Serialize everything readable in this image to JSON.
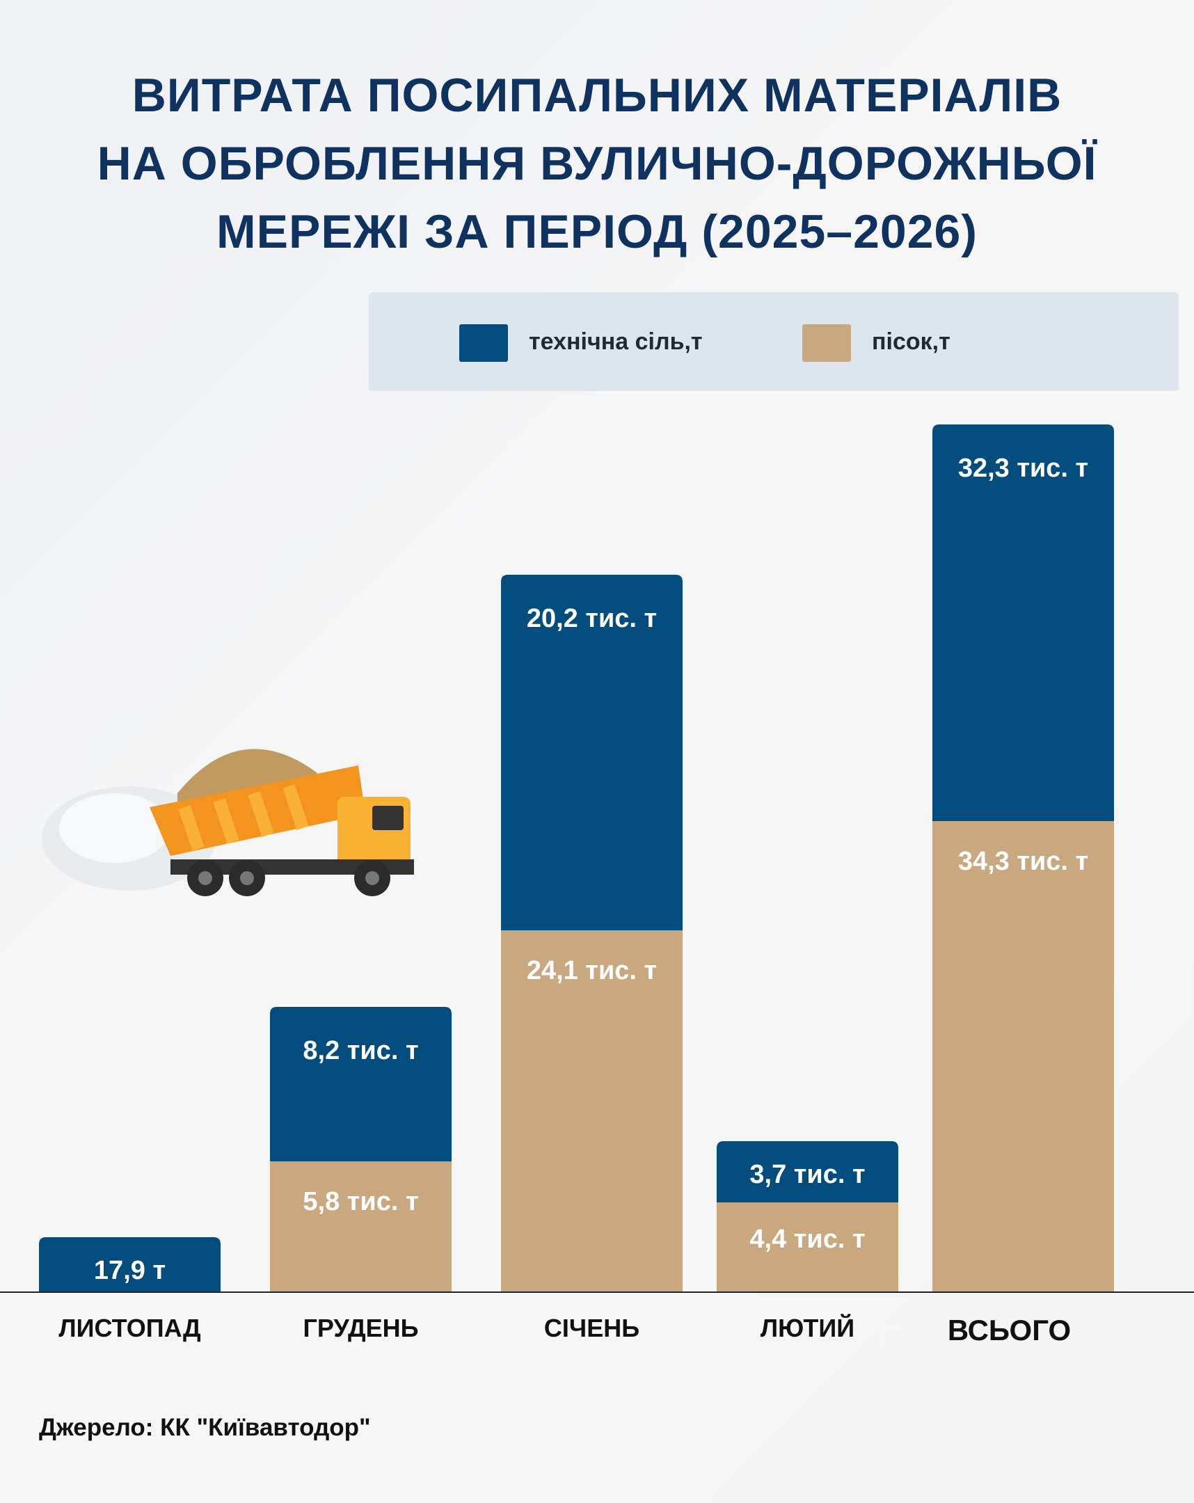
{
  "title_lines": [
    "ВИТРАТА ПОСИПАЛЬНИХ МАТЕРІАЛІВ",
    "НА ОБРОБЛЕННЯ ВУЛИЧНО-ДОРОЖНЬОЇ",
    "МЕРЕЖІ ЗА ПЕРІОД (2025–2026)"
  ],
  "source": "Джерело: КК \"Київавтодор\"",
  "colors": {
    "salt": "#034c7e",
    "sand": "#c9a880",
    "title": "#0f3360"
  },
  "chart_data": {
    "type": "bar",
    "stacked": true,
    "title": "ВИТРАТА ПОСИПАЛЬНИХ МАТЕРІАЛІВ НА ОБРОБЛЕННЯ ВУЛИЧНО-ДОРОЖНЬОЇ МЕРЕЖІ ЗА ПЕРІОД (2025–2026)",
    "categories": [
      "ЛИСТОПАД",
      "ГРУДЕНЬ",
      "СІЧЕНЬ",
      "ЛЮТИЙ",
      "ВСЬОГО"
    ],
    "legend": {
      "position": "top",
      "entries": [
        "технічна сіль,т",
        "пісок,т"
      ]
    },
    "series": [
      {
        "name": "технічна сіль,т",
        "values": [
          0.0179,
          8.2,
          20.2,
          3.7,
          32.3
        ],
        "labels": [
          "17,9 т",
          "8,2 тис. т",
          "20,2 тис. т",
          "3,7 тис. т",
          "32,3 тис. т"
        ]
      },
      {
        "name": "пісок,т",
        "values": [
          0,
          5.8,
          24.1,
          4.4,
          34.3
        ],
        "labels": [
          "",
          "5,8 тис. т",
          "24,1 тис. т",
          "4,4 тис. т",
          "34,3 тис. т"
        ]
      }
    ],
    "unit": "тис. т",
    "grid": false
  }
}
